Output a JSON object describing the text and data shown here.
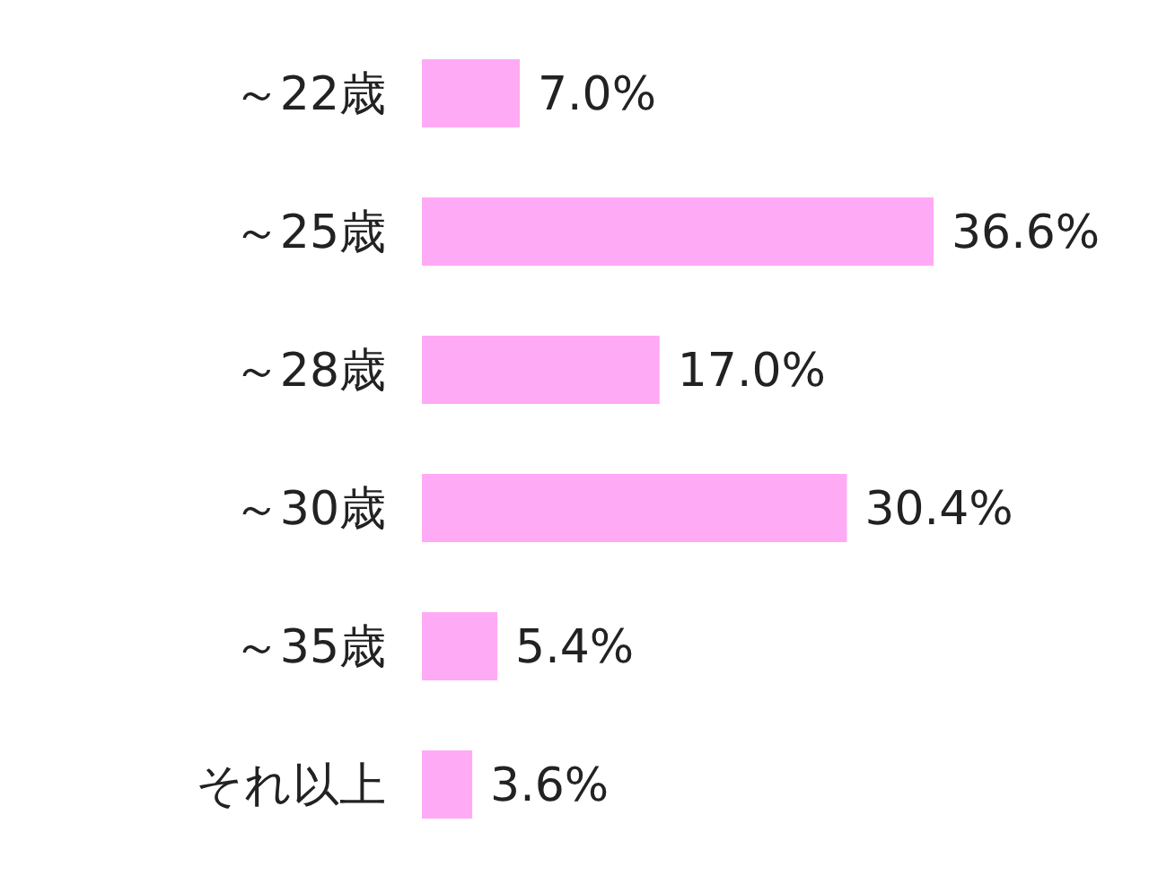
{
  "chart_data": {
    "type": "bar",
    "orientation": "horizontal",
    "categories": [
      "～22歳",
      "～25歳",
      "～28歳",
      "～30歳",
      "～35歳",
      "それ以上"
    ],
    "values": [
      7.0,
      36.6,
      17.0,
      30.4,
      5.4,
      3.6
    ],
    "value_labels": [
      "7.0%",
      "36.6%",
      "17.0%",
      "30.4%",
      "5.4%",
      "3.6%"
    ],
    "color": "#ffaaf5"
  }
}
